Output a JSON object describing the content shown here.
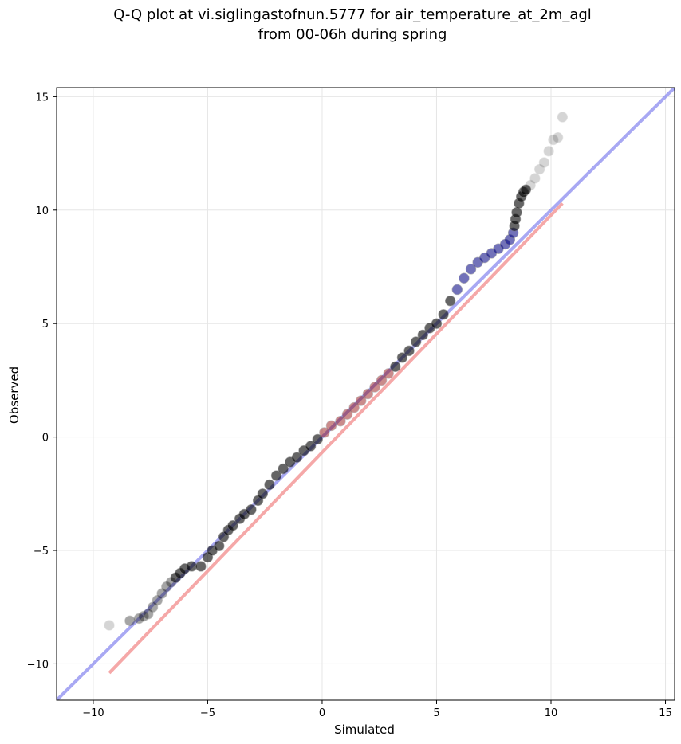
{
  "chart_data": {
    "type": "scatter",
    "title": "Q-Q plot at vi.siglingastofnun.5777 for air_temperature_at_2m_agl",
    "subtitle": "from 00-06h during spring",
    "xlabel": "Simulated",
    "ylabel": "Observed",
    "xlim": [
      -11.6,
      15.4
    ],
    "ylim": [
      -11.6,
      15.4
    ],
    "grid": true,
    "xticks": [
      -10,
      -5,
      0,
      5,
      10,
      15
    ],
    "yticks": [
      -10,
      -5,
      0,
      5,
      10,
      15
    ],
    "tick_labels_x": [
      "−10",
      "−5",
      "0",
      "5",
      "10",
      "15"
    ],
    "tick_labels_y": [
      "−10",
      "−5",
      "0",
      "5",
      "10",
      "15"
    ],
    "reference_line": {
      "x": [
        -11.6,
        15.4
      ],
      "y": [
        -11.6,
        15.4
      ],
      "color": "#8c8cf0"
    },
    "fit_line": {
      "x": [
        -9.3,
        10.5
      ],
      "y": [
        -10.4,
        10.3
      ],
      "color": "#f49a9a"
    },
    "colors": {
      "points": "#000000",
      "points_upper_highlight": "#000080",
      "points_lower_highlight": "#8b0000",
      "grid": "#e6e6e6"
    },
    "series": [
      {
        "x": [
          -9.3,
          -8.4,
          -8.0,
          -7.8,
          -7.6,
          -7.4,
          -7.2,
          -7.0,
          -6.8,
          -6.6,
          -6.4,
          -6.2,
          -6.0,
          -5.7,
          -5.3,
          -5.0,
          -4.8,
          -4.5,
          -4.3,
          -4.1,
          -3.9,
          -3.6,
          -3.4,
          -3.1,
          -2.8,
          -2.6,
          -2.3,
          -2.0,
          -1.7,
          -1.4,
          -1.1,
          -0.8,
          -0.5,
          -0.2,
          0.1,
          0.4,
          0.8,
          1.1,
          1.4,
          1.7,
          2.0,
          2.3,
          2.6,
          2.9,
          3.2,
          3.5,
          3.8,
          4.1,
          4.4,
          4.7,
          5.0,
          5.3,
          5.6,
          5.9,
          6.2,
          6.5,
          6.8,
          7.1,
          7.4,
          7.7,
          8.0,
          8.2,
          8.35,
          8.4,
          8.45,
          8.5,
          8.6,
          8.7,
          8.8,
          8.9,
          9.1,
          9.3,
          9.5,
          9.7,
          9.9,
          10.1,
          10.3,
          10.5
        ],
        "y": [
          -8.3,
          -8.1,
          -8.0,
          -7.9,
          -7.8,
          -7.5,
          -7.2,
          -6.9,
          -6.6,
          -6.4,
          -6.2,
          -6.0,
          -5.8,
          -5.7,
          -5.7,
          -5.3,
          -5.0,
          -4.8,
          -4.4,
          -4.1,
          -3.9,
          -3.6,
          -3.4,
          -3.2,
          -2.8,
          -2.5,
          -2.1,
          -1.7,
          -1.4,
          -1.1,
          -0.9,
          -0.6,
          -0.4,
          -0.1,
          0.2,
          0.5,
          0.7,
          1.0,
          1.3,
          1.6,
          1.9,
          2.2,
          2.5,
          2.8,
          3.1,
          3.5,
          3.8,
          4.2,
          4.5,
          4.8,
          5.0,
          5.4,
          6.0,
          6.5,
          7.0,
          7.4,
          7.7,
          7.9,
          8.1,
          8.3,
          8.5,
          8.7,
          9.0,
          9.3,
          9.6,
          9.9,
          10.3,
          10.6,
          10.8,
          10.9,
          11.1,
          11.4,
          11.8,
          12.1,
          12.6,
          13.1,
          13.2,
          14.1
        ]
      }
    ]
  }
}
